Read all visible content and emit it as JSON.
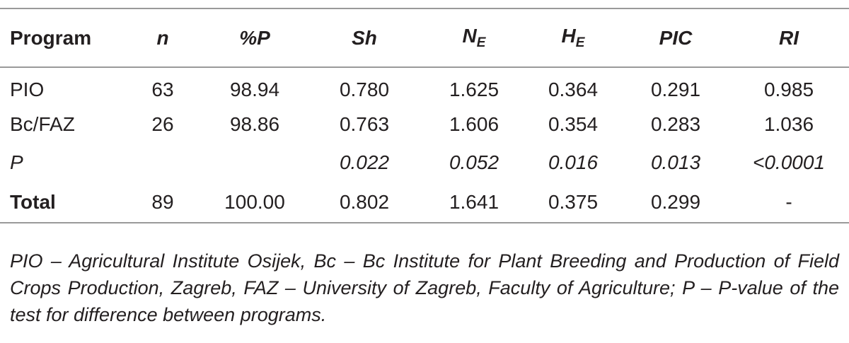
{
  "table": {
    "header": [
      {
        "text": "Program"
      },
      {
        "text": "n"
      },
      {
        "text": "%P"
      },
      {
        "text": "Sh"
      },
      {
        "text": "N",
        "sub": "E"
      },
      {
        "text": "H",
        "sub": "E"
      },
      {
        "text": "PIC"
      },
      {
        "text": "RI"
      }
    ],
    "rows": [
      [
        "PIO",
        "63",
        "98.94",
        "0.780",
        "1.625",
        "0.364",
        "0.291",
        "0.985"
      ],
      [
        "Bc/FAZ",
        "26",
        "98.86",
        "0.763",
        "1.606",
        "0.354",
        "0.283",
        "1.036"
      ],
      [
        "P",
        null,
        null,
        "0.022",
        "0.052",
        "0.016",
        "0.013",
        "<0.0001"
      ],
      [
        "Total",
        "89",
        "100.00",
        "0.802",
        "1.641",
        "0.375",
        "0.299",
        "-"
      ]
    ],
    "footnote": "PIO – Agricultural Institute Osijek, Bc – Bc Institute for Plant Breeding and Production of Field Crops Production, Zagreb, FAZ – University of Zagreb, Faculty of Agriculture; P – P-value of the test for difference between programs."
  }
}
